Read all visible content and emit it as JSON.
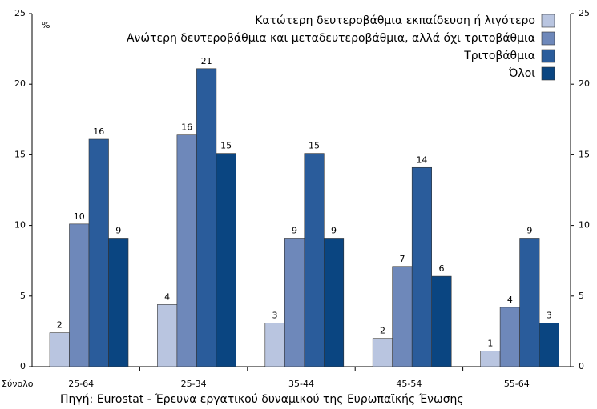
{
  "chart_data": {
    "type": "bar",
    "unit_label": "%",
    "total_label": "Σύνολο",
    "source": "Πηγή: Eurostat - Έρευνα εργατικού δυναμικού της Ευρωπαϊκής Ένωσης",
    "categories": [
      "25-64",
      "25-34",
      "35-44",
      "45-54",
      "55-64"
    ],
    "series": [
      {
        "name": "Κατώτερη δευτεροβάθμια εκπαίδευση ή λιγότερο",
        "color": "#b9c5e0",
        "values": [
          2.4,
          4.4,
          3.1,
          2.0,
          1.1
        ],
        "value_labels": [
          "2",
          "4",
          "3",
          "2",
          "1"
        ]
      },
      {
        "name": "Ανώτερη δευτεροβάθμια και μεταδευτεροβάθμια, αλλά όχι τριτοβάθμια",
        "color": "#6e88ba",
        "values": [
          10.1,
          16.4,
          9.1,
          7.1,
          4.2
        ],
        "value_labels": [
          "10",
          "16",
          "9",
          "7",
          "4"
        ]
      },
      {
        "name": "Τριτοβάθμια",
        "color": "#2a5c9b",
        "values": [
          16.1,
          21.1,
          15.1,
          14.1,
          9.1
        ],
        "value_labels": [
          "16",
          "21",
          "15",
          "14",
          "9"
        ]
      },
      {
        "name": "Όλοι",
        "color": "#0a4581",
        "values": [
          9.1,
          15.1,
          9.1,
          6.4,
          3.1
        ],
        "value_labels": [
          "9",
          "15",
          "9",
          "6",
          "3"
        ]
      }
    ],
    "ylim": [
      0,
      25
    ],
    "yticks": [
      0,
      5,
      10,
      15,
      20,
      25
    ],
    "legend": "top-right"
  }
}
